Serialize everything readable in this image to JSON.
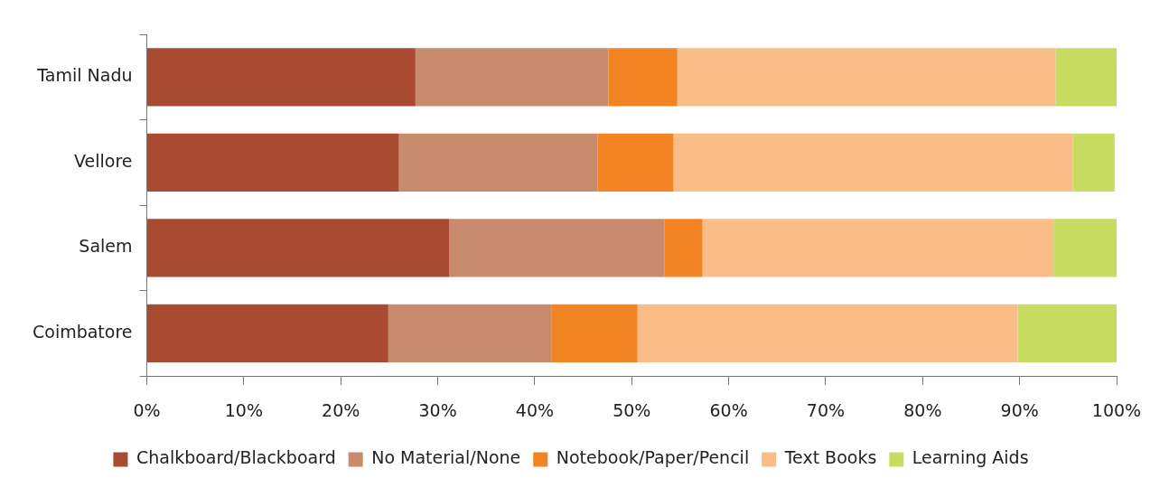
{
  "chart_data": {
    "type": "bar",
    "orientation": "horizontal",
    "stacked": true,
    "categories": [
      "Tamil Nadu",
      "Vellore",
      "Salem",
      "Coimbatore"
    ],
    "series": [
      {
        "name": "Chalkboard/Blackboard",
        "color": "#a84b32",
        "values": [
          27.7,
          26.0,
          31.2,
          24.9
        ]
      },
      {
        "name": "No Material/None",
        "color": "#c88b6e",
        "values": [
          19.9,
          20.5,
          22.2,
          16.8
        ]
      },
      {
        "name": "Notebook/Paper/Pencil",
        "color": "#f28424",
        "values": [
          7.1,
          7.8,
          3.9,
          8.9
        ]
      },
      {
        "name": "Text Books",
        "color": "#fabd87",
        "values": [
          39.0,
          41.2,
          36.2,
          39.2
        ]
      },
      {
        "name": "Learning Aids",
        "color": "#c8dc62",
        "values": [
          6.3,
          4.3,
          6.5,
          10.2
        ]
      }
    ],
    "xlim": [
      0,
      100
    ],
    "xticks": [
      {
        "value": 0,
        "label": "0%"
      },
      {
        "value": 10,
        "label": "10%"
      },
      {
        "value": 20,
        "label": "20%"
      },
      {
        "value": 30,
        "label": "30%"
      },
      {
        "value": 40,
        "label": "40%"
      },
      {
        "value": 50,
        "label": "50%"
      },
      {
        "value": 60,
        "label": "60%"
      },
      {
        "value": 70,
        "label": "70%"
      },
      {
        "value": 80,
        "label": "80%"
      },
      {
        "value": 90,
        "label": "90%"
      },
      {
        "value": 100,
        "label": "100%"
      }
    ],
    "grid": false,
    "legend": "bottom"
  }
}
